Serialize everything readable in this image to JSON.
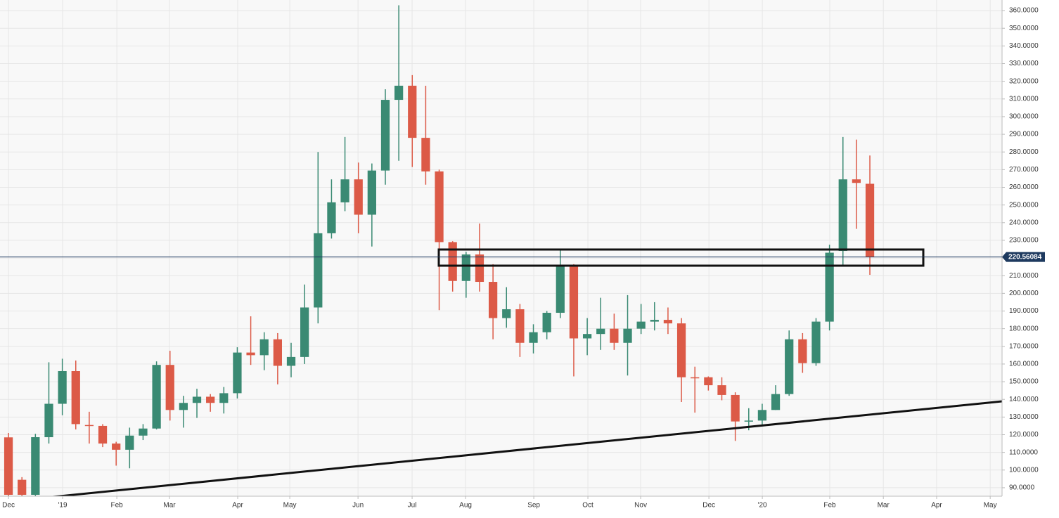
{
  "chart_data": {
    "type": "candlestick",
    "categories": [
      null,
      null,
      null,
      null,
      null,
      null,
      null,
      null,
      null,
      null,
      null,
      null,
      null,
      null,
      null,
      null,
      null,
      null,
      null,
      null,
      null,
      null,
      null,
      null,
      null,
      null,
      null,
      null,
      null,
      null,
      null,
      null,
      null,
      null,
      null,
      null,
      null,
      null,
      null,
      null,
      null,
      null,
      null,
      null,
      null,
      null,
      null,
      null,
      null,
      null,
      null,
      null,
      null,
      null,
      null,
      null,
      null,
      null,
      null,
      null,
      null,
      null,
      null,
      null,
      null
    ],
    "open": [
      118.5,
      94.5,
      86,
      118.6,
      137.5,
      156,
      125.5,
      125,
      115,
      111.5,
      119.5,
      123.5,
      159.5,
      134,
      138,
      141.5,
      138,
      143.5,
      166.5,
      165,
      174,
      159,
      164,
      192,
      234,
      251.5,
      264.5,
      244.5,
      269.5,
      309.5,
      317.5,
      288,
      269,
      229,
      207,
      222,
      206.5,
      186,
      191,
      172,
      178,
      189,
      215.5,
      174.5,
      177,
      180,
      172,
      180,
      184,
      185,
      183,
      152.5,
      152.5,
      148,
      142.5,
      127.5,
      128,
      134,
      143,
      174,
      160.5,
      184,
      224,
      264.5,
      262
    ],
    "high": [
      121,
      96,
      120.5,
      161,
      163,
      162,
      133,
      126,
      116,
      124,
      126,
      161.5,
      167.5,
      142,
      146,
      143,
      147,
      169.5,
      187,
      178,
      177.5,
      172,
      205,
      280,
      264.5,
      288.5,
      274,
      273.5,
      315.5,
      363,
      323.5,
      317.5,
      270,
      229.5,
      223.5,
      239.5,
      216.5,
      203.5,
      194,
      182.5,
      190,
      225,
      216.5,
      186,
      197.5,
      188.5,
      199,
      194,
      195,
      192,
      186,
      158.5,
      153,
      152.5,
      144,
      135,
      137.5,
      148,
      179,
      177.5,
      186,
      227.5,
      288.5,
      287,
      278
    ],
    "low": [
      84,
      84,
      84,
      115,
      131,
      123,
      115,
      113,
      102.5,
      101,
      117,
      123,
      128,
      124,
      129.5,
      133,
      132,
      140.5,
      159.5,
      156.5,
      148.5,
      152.5,
      160,
      183,
      231,
      246.5,
      234,
      226.5,
      261.5,
      275,
      271.5,
      261.5,
      190.5,
      201,
      197.5,
      201,
      174,
      180.5,
      164,
      166,
      174,
      186,
      153,
      165,
      168,
      168,
      153.5,
      177,
      179,
      177,
      138.5,
      132.5,
      145,
      139.5,
      116.5,
      122.5,
      125,
      134,
      142,
      155,
      159,
      179,
      215.5,
      236.5,
      210.5
    ],
    "close": [
      86,
      86,
      118.6,
      137.5,
      156,
      126,
      125,
      115,
      111.5,
      119.5,
      123.5,
      159.5,
      134,
      138,
      141.5,
      138,
      143.5,
      166.5,
      165,
      174,
      159,
      164,
      192,
      234,
      251.5,
      264.5,
      244.5,
      269.5,
      309.5,
      317.5,
      288,
      269,
      229,
      207,
      222,
      206.5,
      186,
      191,
      172,
      178,
      189,
      215.5,
      174.5,
      177,
      180,
      172,
      180,
      184,
      185,
      183,
      152.5,
      152,
      148,
      142.5,
      127.5,
      128,
      134,
      143,
      174,
      160.5,
      184,
      223,
      264.5,
      262.5,
      220.56
    ],
    "up_color": "#3a8a73",
    "down_color": "#dc5a47",
    "last_price": 220.56084,
    "xlim": [
      -0.63,
      73.82
    ],
    "xticks": [
      {
        "value": 0,
        "label": "Dec"
      },
      {
        "value": 4.02,
        "label": "'19"
      },
      {
        "value": 8.05,
        "label": "Feb"
      },
      {
        "value": 11.96,
        "label": "Mar"
      },
      {
        "value": 17.03,
        "label": "Apr"
      },
      {
        "value": 20.9,
        "label": "May"
      },
      {
        "value": 25.97,
        "label": "Jun"
      },
      {
        "value": 29.99,
        "label": "Jul"
      },
      {
        "value": 33.96,
        "label": "Aug"
      },
      {
        "value": 39.03,
        "label": "Sep"
      },
      {
        "value": 43.05,
        "label": "Oct"
      },
      {
        "value": 46.97,
        "label": "Nov"
      },
      {
        "value": 52.04,
        "label": "Dec"
      },
      {
        "value": 56.01,
        "label": "'20"
      },
      {
        "value": 61.02,
        "label": "Feb"
      },
      {
        "value": 65,
        "label": "Mar"
      },
      {
        "value": 68.96,
        "label": "Apr"
      },
      {
        "value": 72.94,
        "label": "May"
      }
    ],
    "ylim": [
      85.2,
      366
    ],
    "yticks": [
      {
        "value": 90,
        "label": "90.0000"
      },
      {
        "value": 100,
        "label": "100.0000"
      },
      {
        "value": 110,
        "label": "110.0000"
      },
      {
        "value": 120,
        "label": "120.0000"
      },
      {
        "value": 130,
        "label": "130.0000"
      },
      {
        "value": 140,
        "label": "140.0000"
      },
      {
        "value": 150,
        "label": "150.0000"
      },
      {
        "value": 160,
        "label": "160.0000"
      },
      {
        "value": 170,
        "label": "170.0000"
      },
      {
        "value": 180,
        "label": "180.0000"
      },
      {
        "value": 190,
        "label": "190.0000"
      },
      {
        "value": 200,
        "label": "200.0000"
      },
      {
        "value": 210,
        "label": "210.0000"
      },
      {
        "value": 220,
        "label": "220.0000"
      },
      {
        "value": 230,
        "label": "230.0000"
      },
      {
        "value": 240,
        "label": "240.0000"
      },
      {
        "value": 250,
        "label": "250.0000"
      },
      {
        "value": 260,
        "label": "260.0000"
      },
      {
        "value": 270,
        "label": "270.0000"
      },
      {
        "value": 280,
        "label": "280.0000"
      },
      {
        "value": 290,
        "label": "290.0000"
      },
      {
        "value": 300,
        "label": "300.0000"
      },
      {
        "value": 310,
        "label": "310.0000"
      },
      {
        "value": 320,
        "label": "320.0000"
      },
      {
        "value": 330,
        "label": "330.0000"
      },
      {
        "value": 340,
        "label": "340.0000"
      },
      {
        "value": 350,
        "label": "350.0000"
      },
      {
        "value": 360,
        "label": "360.0000"
      }
    ],
    "grid": true
  }
}
